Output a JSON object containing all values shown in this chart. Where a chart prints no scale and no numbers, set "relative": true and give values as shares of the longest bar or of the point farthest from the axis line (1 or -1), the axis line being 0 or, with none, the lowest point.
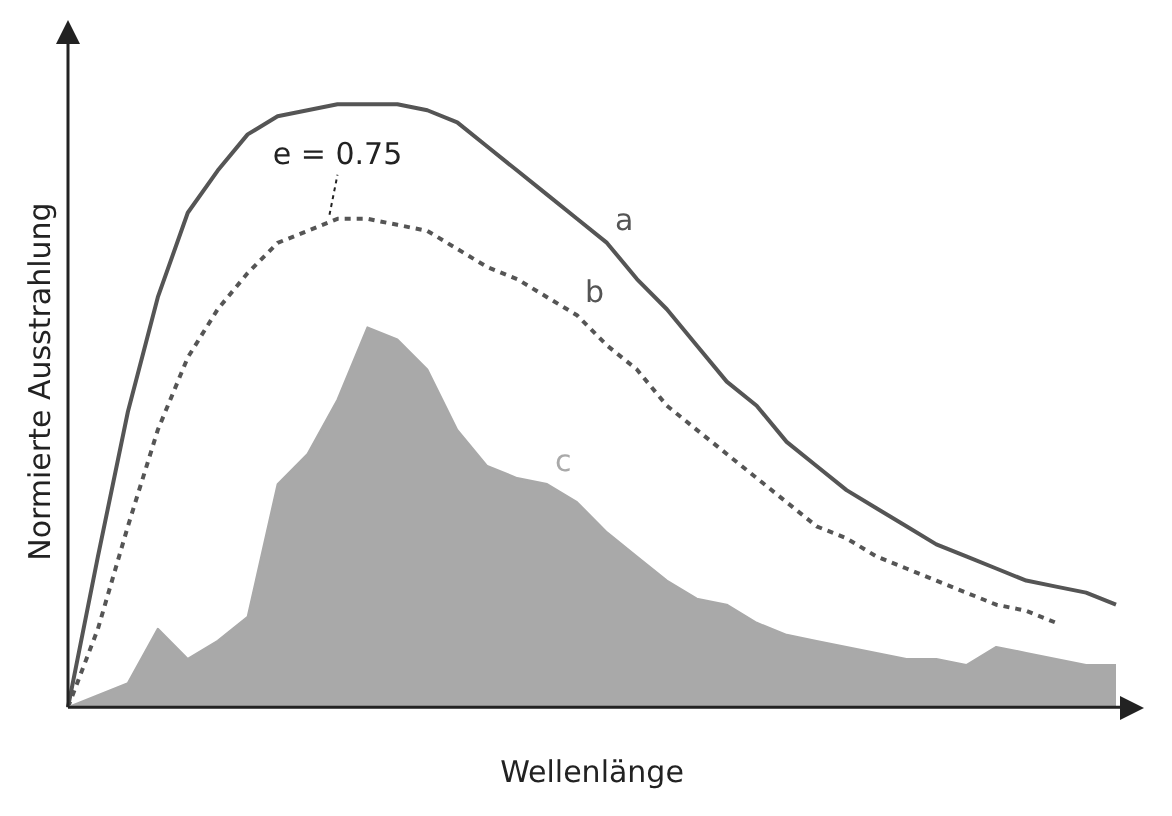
{
  "chart_data": {
    "type": "line",
    "relative": true,
    "xlabel": "Wellenlänge",
    "ylabel": "Normierte Ausstrahlung",
    "legend": false,
    "grid": false,
    "marker": "none",
    "categories": [
      null,
      null,
      null,
      null,
      null,
      null,
      null,
      null,
      null,
      null,
      null,
      null,
      null,
      null,
      null,
      null,
      null,
      null,
      null,
      null,
      null,
      null,
      null,
      null,
      null,
      null,
      null,
      null,
      null,
      null,
      null,
      null,
      null,
      null,
      null,
      null
    ],
    "annotations": [
      "e = 0.75"
    ],
    "series": [
      {
        "name": "a",
        "type": "line",
        "line_style": "solid",
        "color": "#555555",
        "values": [
          0,
          0.25,
          0.49,
          0.68,
          0.82,
          0.89,
          0.95,
          0.98,
          0.99,
          1,
          1,
          1,
          0.99,
          0.97,
          0.93,
          0.89,
          0.85,
          0.81,
          0.77,
          0.71,
          0.66,
          0.6,
          0.54,
          0.5,
          0.44,
          0.4,
          0.36,
          0.33,
          0.3,
          0.27,
          0.25,
          0.23,
          0.21,
          0.2,
          0.19,
          0.17
        ]
      },
      {
        "name": "b",
        "type": "line",
        "line_style": "dotted",
        "color": "#555555",
        "values": [
          0,
          0.13,
          0.3,
          0.46,
          0.58,
          0.66,
          0.72,
          0.77,
          0.79,
          0.81,
          0.81,
          0.8,
          0.79,
          0.76,
          0.73,
          0.71,
          0.68,
          0.65,
          0.6,
          0.56,
          0.5,
          0.46,
          0.42,
          0.38,
          0.34,
          0.3,
          0.28,
          0.25,
          0.23,
          0.21,
          0.19,
          0.17,
          0.16,
          0.14,
          null,
          null
        ]
      },
      {
        "name": "c",
        "type": "area",
        "color": "#a9a9a9",
        "values": [
          0,
          0.02,
          0.04,
          0.13,
          0.08,
          0.11,
          0.15,
          0.37,
          0.42,
          0.51,
          0.63,
          0.61,
          0.56,
          0.46,
          0.4,
          0.38,
          0.37,
          0.34,
          0.29,
          0.25,
          0.21,
          0.18,
          0.17,
          0.14,
          0.12,
          0.11,
          0.1,
          0.09,
          0.08,
          0.08,
          0.07,
          0.1,
          0.09,
          0.08,
          0.07,
          0.07
        ]
      }
    ]
  }
}
